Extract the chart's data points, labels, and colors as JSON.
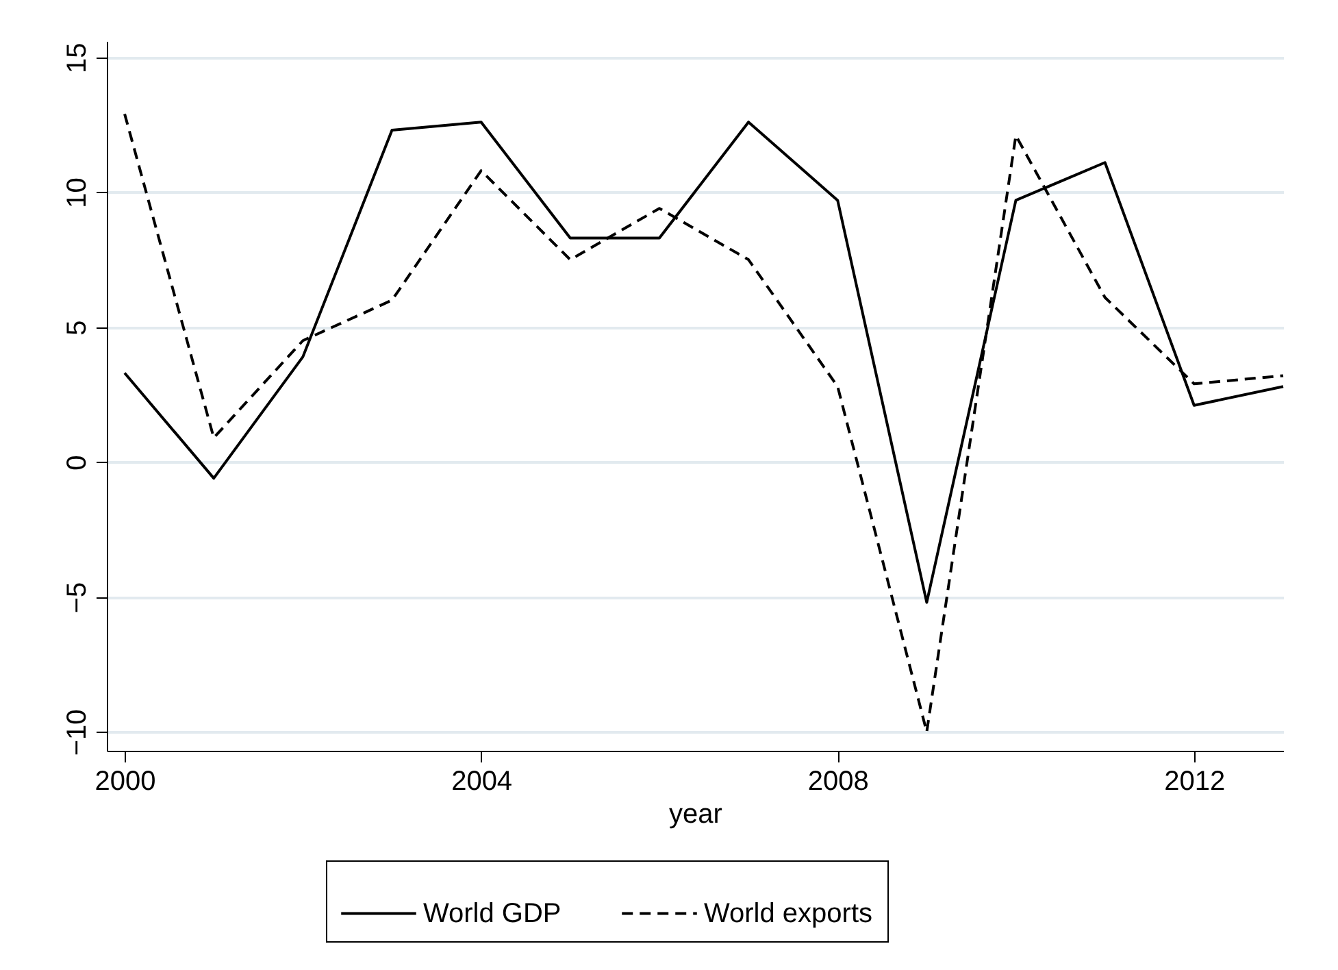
{
  "chart_data": {
    "type": "line",
    "xlabel": "year",
    "x": [
      2000,
      2001,
      2002,
      2003,
      2004,
      2005,
      2006,
      2007,
      2008,
      2009,
      2010,
      2011,
      2012,
      2013
    ],
    "series": [
      {
        "name": "World GDP",
        "color": "#000000",
        "line_style": "solid",
        "values": [
          3.3,
          -0.6,
          3.9,
          12.3,
          12.6,
          8.3,
          8.3,
          12.6,
          9.7,
          -5.2,
          9.7,
          11.1,
          2.1,
          2.8
        ]
      },
      {
        "name": "World exports",
        "color": "#000000",
        "line_style": "dashed",
        "values": [
          12.9,
          0.9,
          4.5,
          6.0,
          10.8,
          7.5,
          9.4,
          7.5,
          2.8,
          -10.0,
          12.1,
          6.1,
          2.9,
          3.2
        ]
      }
    ],
    "xlim": [
      1999.8,
      2013
    ],
    "xticks": [
      2000,
      2004,
      2008,
      2012
    ],
    "ylim": [
      -10.7,
      15.6
    ],
    "yticks": [
      -10,
      -5,
      0,
      5,
      10,
      15
    ],
    "grid": "y",
    "legend": "bottom",
    "marker": "none"
  }
}
